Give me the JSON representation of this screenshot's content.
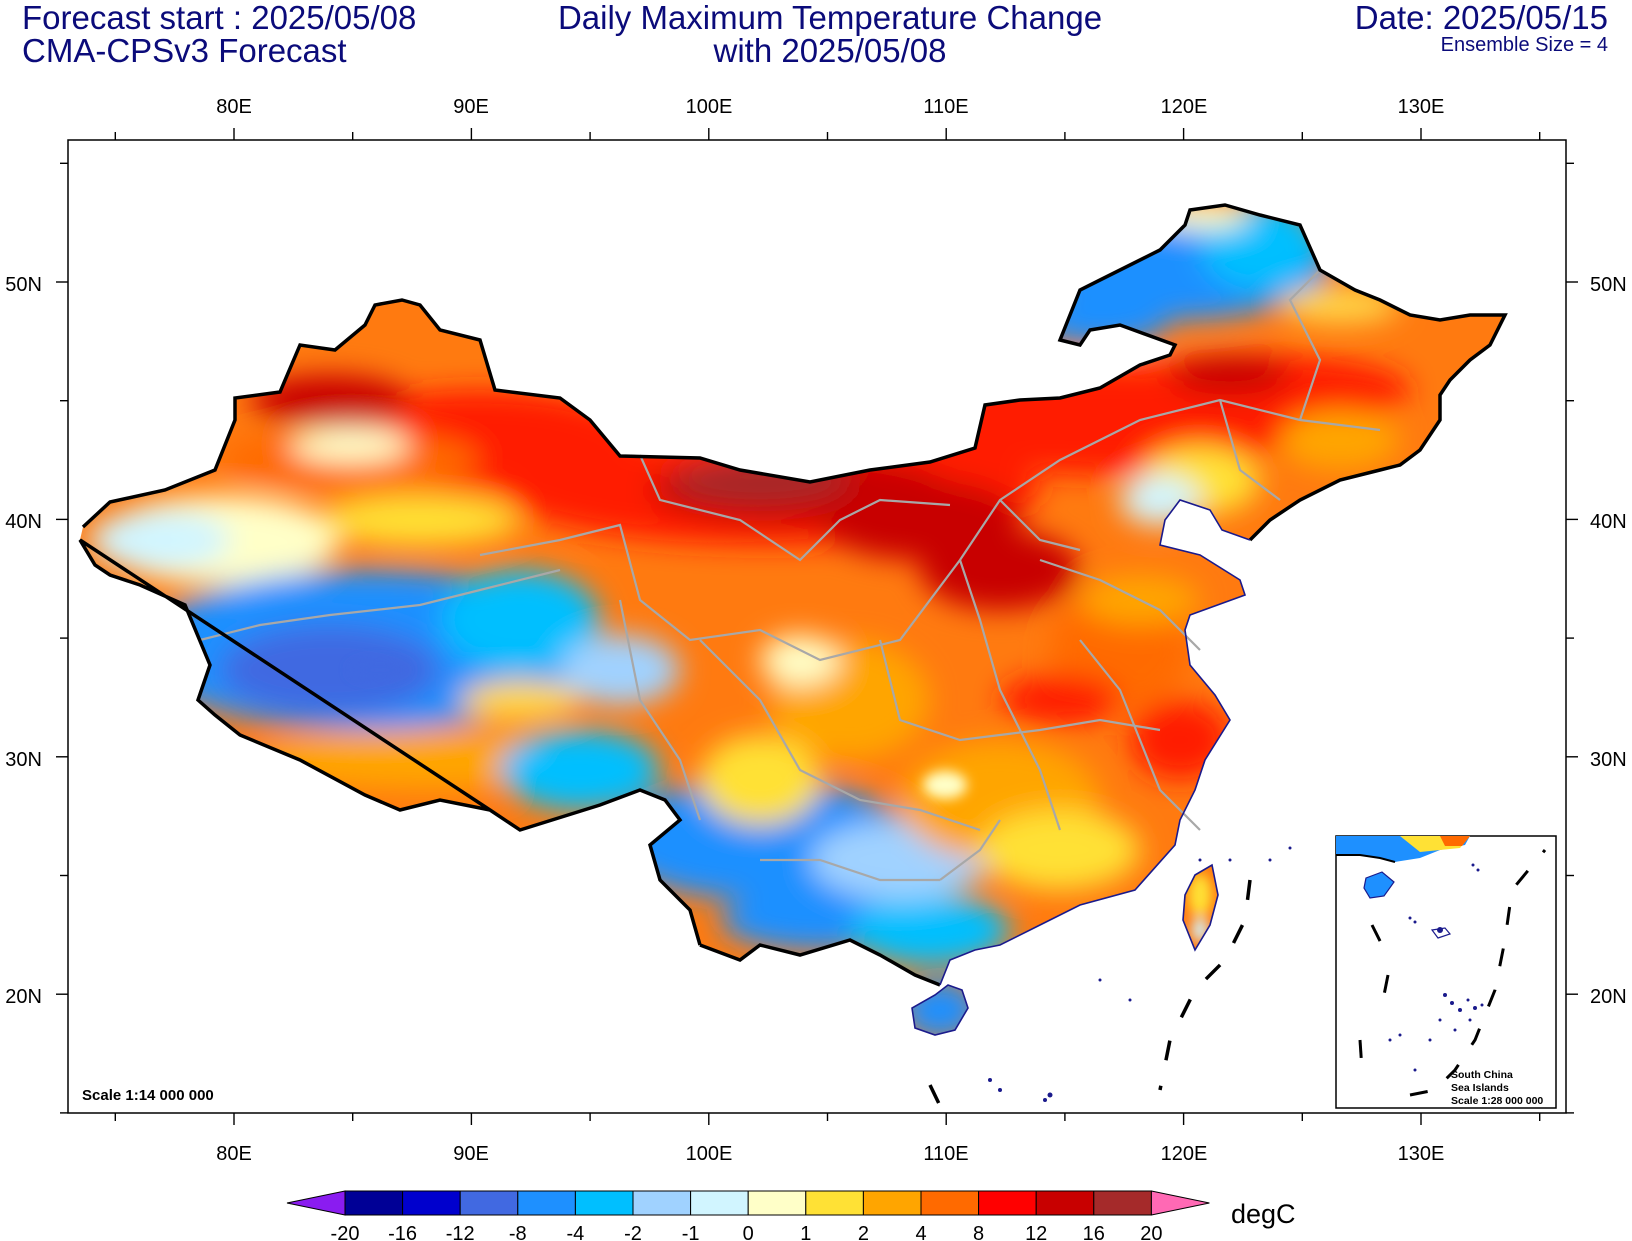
{
  "header": {
    "forecast_start": "Forecast start : 2025/05/08",
    "model": "CMA-CPSv3 Forecast",
    "title_line1": "Daily Maximum Temperature Change",
    "title_line2": "with 2025/05/08",
    "date": "Date: 2025/05/15",
    "ensemble": "Ensemble Size = 4"
  },
  "map": {
    "lon_labels": [
      "80E",
      "90E",
      "100E",
      "110E",
      "120E",
      "130E"
    ],
    "lat_labels": [
      "50N",
      "40N",
      "30N",
      "20N"
    ],
    "scale_main": "Scale 1:14 000 000",
    "inset_title1": "South China",
    "inset_title2": "Sea Islands",
    "inset_scale": "Scale 1:28 000 000",
    "region_anomalies": [
      {
        "region": "north-central plateau",
        "value": 16
      },
      {
        "region": "north-east plain",
        "value": 12
      },
      {
        "region": "north-west basin",
        "value": 12
      },
      {
        "region": "central",
        "value": 4
      },
      {
        "region": "tibetan plateau",
        "value": -8
      },
      {
        "region": "south-west",
        "value": -4
      },
      {
        "region": "far north-east",
        "value": -4
      },
      {
        "region": "south-east coast",
        "value": 4
      }
    ]
  },
  "colorbar": {
    "unit": "degC",
    "ticks": [
      "-20",
      "-16",
      "-12",
      "-8",
      "-4",
      "-2",
      "-1",
      "0",
      "1",
      "2",
      "4",
      "8",
      "12",
      "16",
      "20"
    ],
    "colors": [
      "#8a1cf0",
      "#000096",
      "#0000cd",
      "#4169e1",
      "#1e90ff",
      "#00bfff",
      "#a0d2ff",
      "#d1f5ff",
      "#ffffc8",
      "#ffe135",
      "#ffa500",
      "#ff6a00",
      "#ff0000",
      "#c80000",
      "#a52a2a",
      "#ff69b4"
    ]
  }
}
